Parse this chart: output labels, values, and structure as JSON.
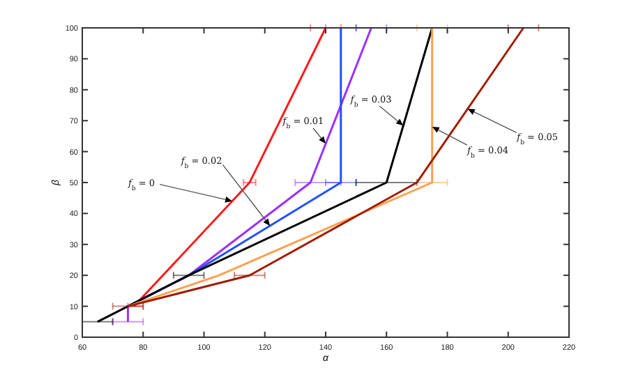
{
  "chart_data": {
    "type": "line",
    "xlabel": "α",
    "ylabel": "β",
    "xlim": [
      60,
      220
    ],
    "ylim": [
      0,
      100
    ],
    "xticks": [
      60,
      80,
      100,
      120,
      140,
      160,
      180,
      200,
      220
    ],
    "yticks": [
      0,
      10,
      20,
      30,
      40,
      50,
      60,
      70,
      80,
      90,
      100
    ],
    "grid": false,
    "line_style": "solid",
    "series": [
      {
        "color": "#ff1a1a",
        "x": [
          77,
          115,
          140
        ],
        "values": [
          10,
          50,
          100
        ],
        "xerrors": [
          [
            75,
            80
          ],
          [
            113,
            117
          ],
          [
            135,
            145
          ]
        ]
      },
      {
        "color": "#9b30ff",
        "x": [
          75,
          75,
          95,
          135,
          155
        ],
        "values": [
          5,
          10,
          20,
          50,
          100
        ],
        "xerrors": [
          [
            70,
            80
          ],
          null,
          null,
          [
            130,
            145
          ],
          [
            150,
            160
          ]
        ]
      },
      {
        "color": "#1f4fff",
        "x": [
          75,
          95,
          145,
          145
        ],
        "values": [
          10,
          20,
          50,
          100
        ],
        "xerrors": [
          null,
          null,
          [
            140,
            150
          ],
          [
            140,
            150
          ]
        ]
      },
      {
        "color": "#000000",
        "x": [
          65,
          75,
          95,
          160,
          175
        ],
        "values": [
          5,
          10,
          20,
          50,
          100
        ],
        "xerrors": [
          [
            60,
            70
          ],
          null,
          [
            90,
            100
          ],
          [
            150,
            170
          ],
          null
        ]
      },
      {
        "color": "#ffa050",
        "x": [
          75,
          105,
          175,
          175
        ],
        "values": [
          10,
          20,
          50,
          100
        ],
        "xerrors": [
          null,
          null,
          [
            170,
            180
          ],
          [
            170,
            180
          ]
        ]
      },
      {
        "color": "#a01c00",
        "x": [
          75,
          115,
          170,
          205
        ],
        "values": [
          10,
          20,
          50,
          100
        ],
        "xerrors": [
          [
            70,
            80
          ],
          [
            110,
            120
          ],
          null,
          [
            200,
            210
          ]
        ]
      }
    ],
    "annotations": [
      {
        "text": "f$_{b}$ = 0",
        "x": 109.3,
        "y": 44
      },
      {
        "text": "f$_{b}$ = 0.02",
        "x": 121.7,
        "y": 36
      },
      {
        "text": "f$_{b}$ = 0.01",
        "x": 140,
        "y": 62.6
      },
      {
        "text": "f$_{b}$ = 0.03",
        "x": 165.5,
        "y": 68.4
      },
      {
        "text": "f$_{b}$ = 0.04",
        "x": 175,
        "y": 68
      },
      {
        "text": "f$_{b}$ = 0.05",
        "x": 186.7,
        "y": 73.8
      }
    ]
  }
}
